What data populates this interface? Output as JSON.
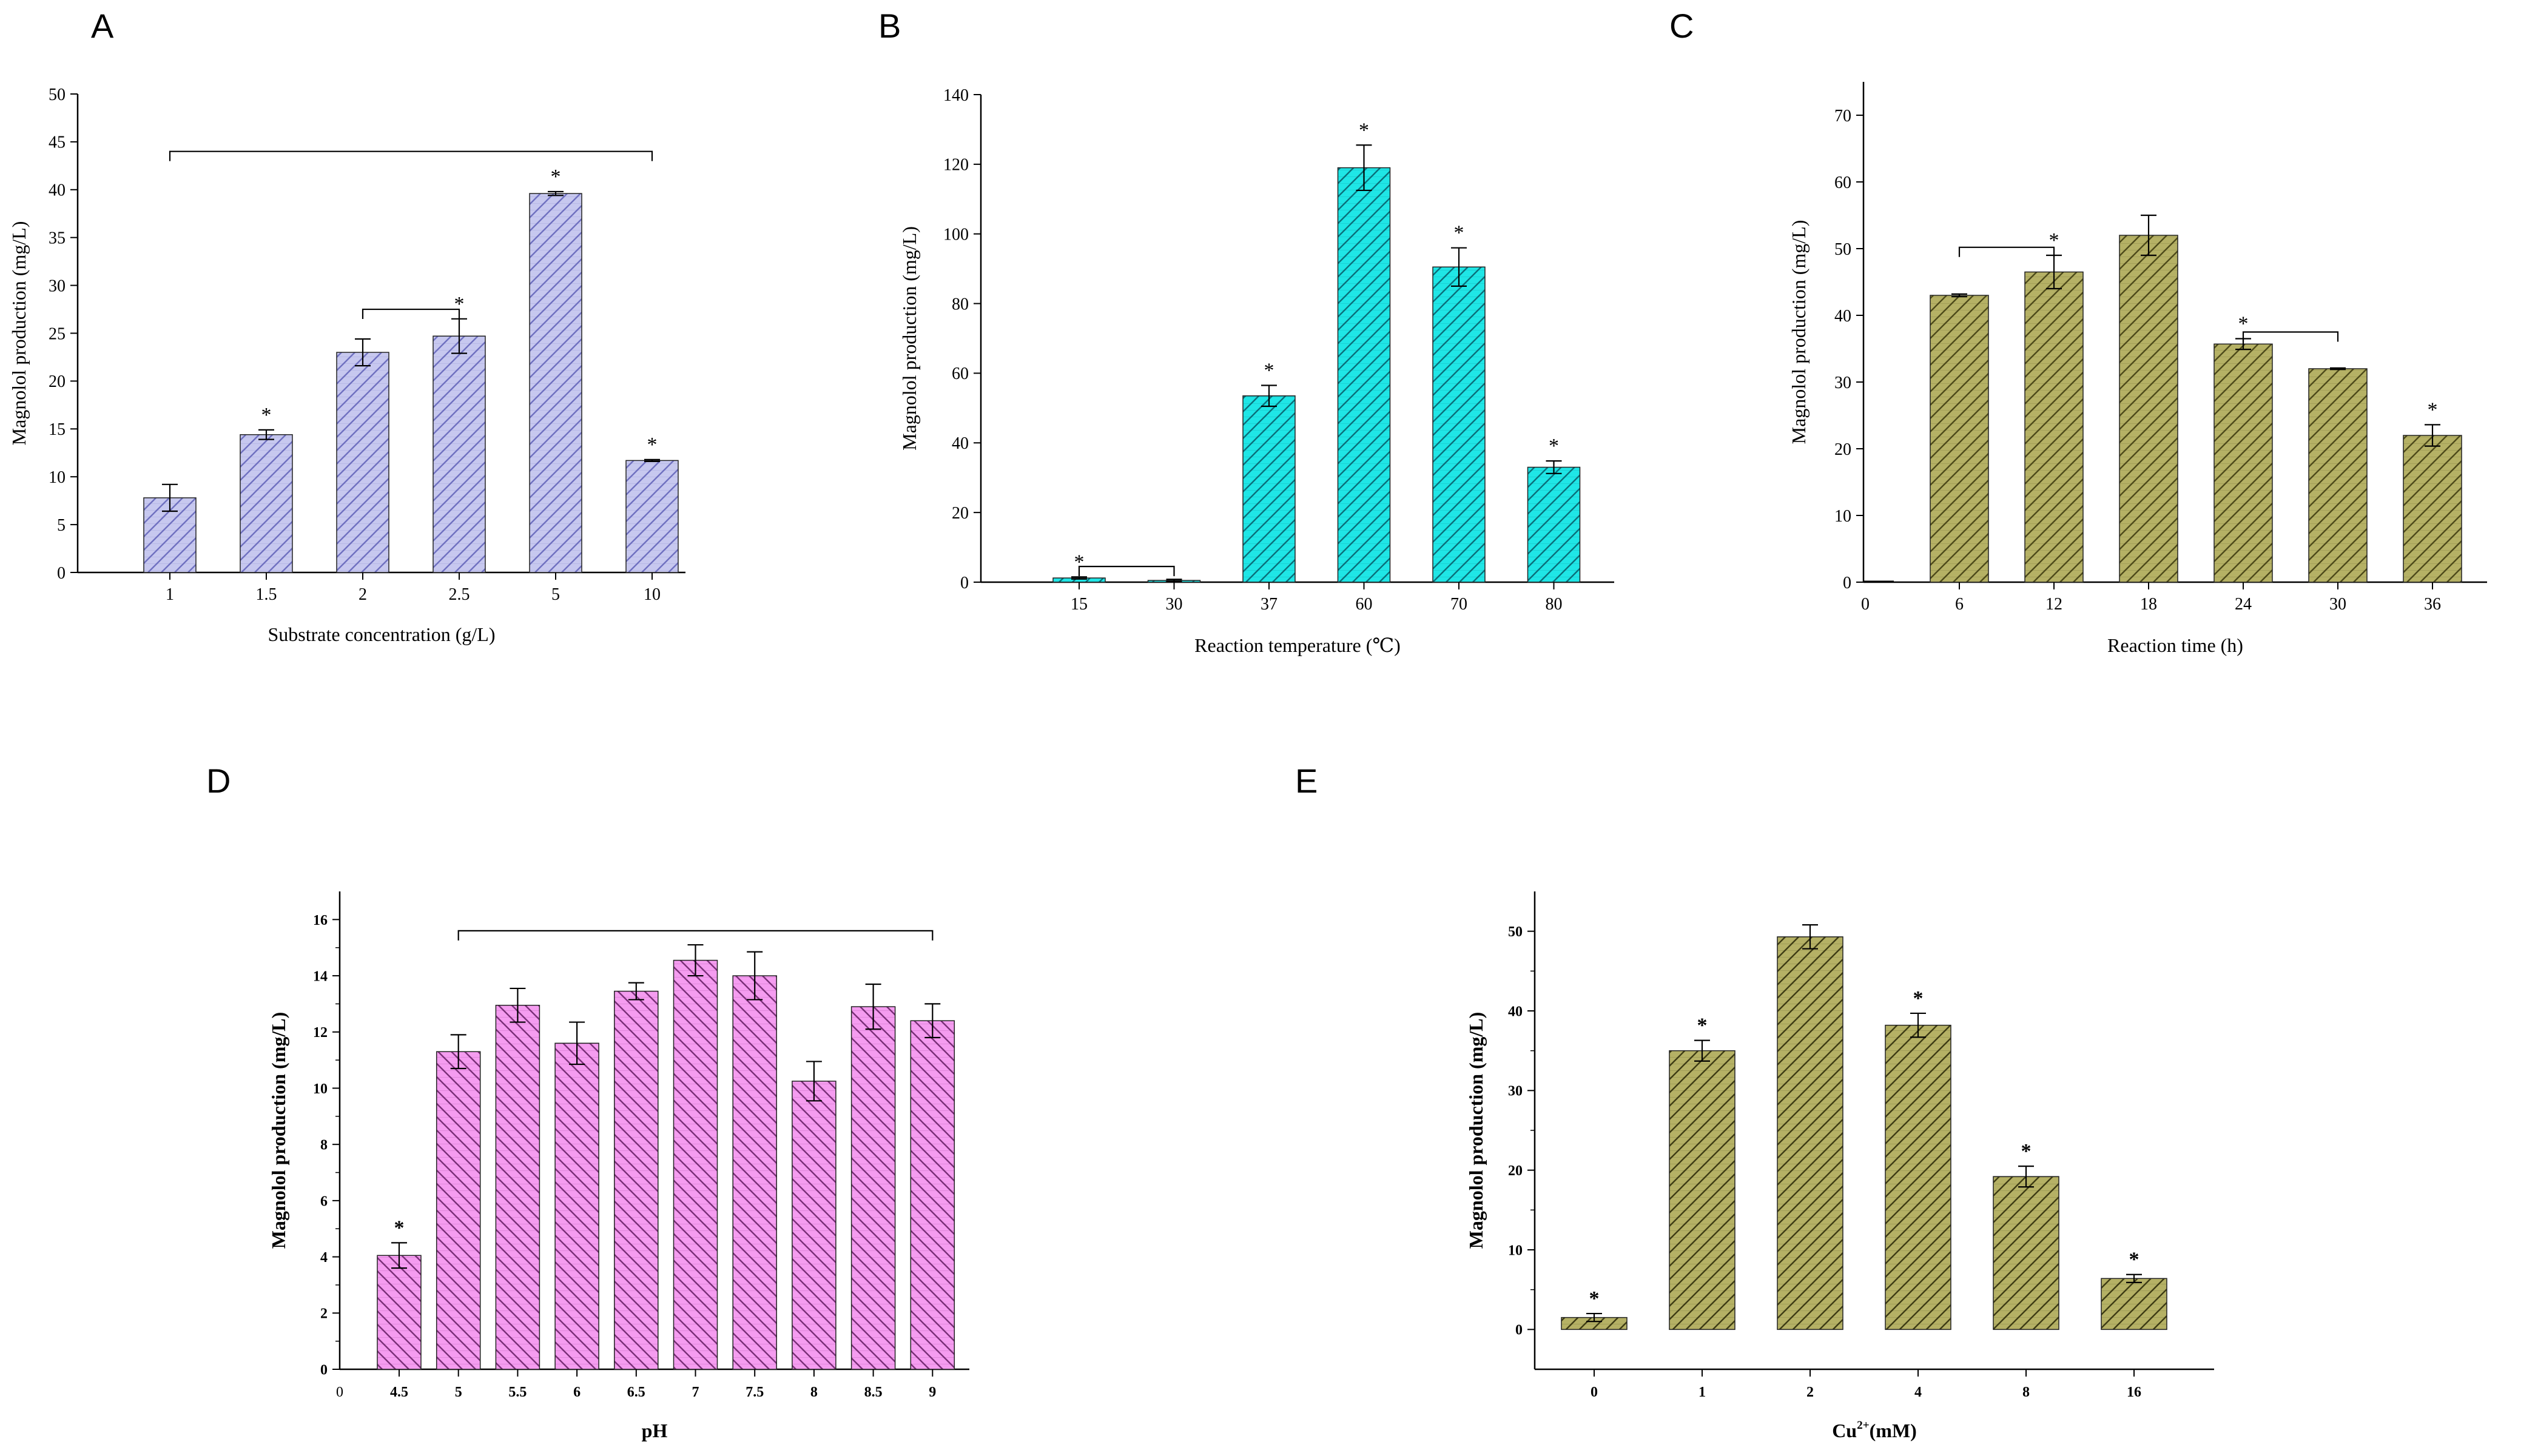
{
  "figure": {
    "panel_letters": [
      "A",
      "B",
      "C",
      "D",
      "E"
    ]
  },
  "colors": {
    "A_fill": "#c7c8ef",
    "A_hatch": "#6f70c0",
    "B_fill": "#1fe6e6",
    "B_hatch": "#0a6f7a",
    "C_fill": "#b5b165",
    "C_hatch": "#4d4a1a",
    "D_fill": "#f59cf0",
    "D_hatch": "#7a2f78",
    "E_fill": "#b5b165",
    "E_hatch": "#3e3c14"
  },
  "chart_data": [
    {
      "id": "A",
      "type": "bar",
      "categories": [
        "1",
        "1.5",
        "2",
        "2.5",
        "5",
        "10"
      ],
      "values": [
        7.8,
        14.4,
        23.0,
        24.7,
        39.6,
        11.7
      ],
      "errors": [
        1.4,
        0.5,
        1.4,
        1.8,
        0.2,
        0.1
      ],
      "significance": [
        "",
        "*",
        "",
        "*",
        "*",
        "*"
      ],
      "xlabel": "Substrate concentration (g/L)",
      "ylabel": "Magnolol production (mg/L)",
      "ylim": [
        0,
        50
      ],
      "yticks": [
        0,
        5,
        10,
        15,
        20,
        25,
        30,
        35,
        40,
        45,
        50
      ],
      "brackets": [
        {
          "from": 0,
          "to": 5,
          "level": 44
        },
        {
          "from": 2,
          "to": 3,
          "level": 27.5
        }
      ],
      "axis_style": "serif"
    },
    {
      "id": "B",
      "type": "bar",
      "categories": [
        "15",
        "30",
        "37",
        "60",
        "70",
        "80"
      ],
      "values": [
        1.2,
        0.5,
        53.5,
        119.0,
        90.5,
        33.0
      ],
      "errors": [
        0.3,
        0.3,
        3.0,
        6.5,
        5.5,
        1.8
      ],
      "significance": [
        "*",
        "",
        "*",
        "*",
        "*",
        "*"
      ],
      "xlabel": "Reaction temperature (℃)",
      "ylabel": "Magnolol production (mg/L)",
      "ylim": [
        0,
        140
      ],
      "yticks": [
        0,
        20,
        40,
        60,
        80,
        100,
        120,
        140
      ],
      "brackets": [
        {
          "from": 0,
          "to": 1,
          "level": 4.5
        }
      ],
      "axis_style": "serif"
    },
    {
      "id": "C",
      "type": "bar",
      "x_origin_label": "0",
      "categories": [
        "6",
        "12",
        "18",
        "24",
        "30",
        "36"
      ],
      "values": [
        43.0,
        46.5,
        52.0,
        35.7,
        32.0,
        22.0
      ],
      "errors": [
        0.2,
        2.5,
        3.0,
        0.8,
        0.1,
        1.6
      ],
      "significance": [
        "",
        "*",
        "",
        "*",
        "",
        "*"
      ],
      "xlabel": "Reaction time (h)",
      "ylabel": "Magnolol production (mg/L)",
      "ylim": [
        0,
        75
      ],
      "yticks": [
        0,
        10,
        20,
        30,
        40,
        50,
        60,
        70
      ],
      "brackets": [
        {
          "from": 0,
          "to": 1,
          "level": 50.2
        },
        {
          "from": 3,
          "to": 4,
          "level": 37.5
        }
      ],
      "axis_style": "serif"
    },
    {
      "id": "D",
      "type": "bar",
      "x_origin_label": "0",
      "categories": [
        "4.5",
        "5",
        "5.5",
        "6",
        "6.5",
        "7",
        "7.5",
        "8",
        "8.5",
        "9"
      ],
      "values": [
        4.05,
        11.3,
        12.95,
        11.6,
        13.45,
        14.55,
        14.0,
        10.25,
        12.9,
        12.4
      ],
      "errors": [
        0.45,
        0.6,
        0.6,
        0.75,
        0.3,
        0.55,
        0.85,
        0.7,
        0.8,
        0.6
      ],
      "significance": [
        "*",
        "",
        "",
        "",
        "",
        "",
        "",
        "",
        "",
        ""
      ],
      "xlabel": "pH",
      "ylabel": "Magnolol production (mg/L)",
      "ylim": [
        0,
        17
      ],
      "yticks": [
        0,
        2,
        4,
        6,
        8,
        10,
        12,
        14,
        16
      ],
      "brackets": [
        {
          "from": 1,
          "to": 9,
          "level": 15.6
        }
      ],
      "axis_style": "bold"
    },
    {
      "id": "E",
      "type": "bar",
      "categories": [
        "0",
        "1",
        "2",
        "4",
        "8",
        "16"
      ],
      "values": [
        1.5,
        35.0,
        49.3,
        38.2,
        19.2,
        6.4
      ],
      "errors": [
        0.5,
        1.3,
        1.5,
        1.5,
        1.3,
        0.5
      ],
      "significance": [
        "*",
        "*",
        "",
        "*",
        "*",
        "*"
      ],
      "xlabel": "Cu",
      "xlabel_superscript": "2+",
      "xlabel_suffix": "(mM)",
      "ylabel": "Magnolol production (mg/L)",
      "ylim": [
        -5,
        55
      ],
      "yticks": [
        0,
        10,
        20,
        30,
        40,
        50
      ],
      "brackets": [],
      "axis_style": "bold"
    }
  ]
}
